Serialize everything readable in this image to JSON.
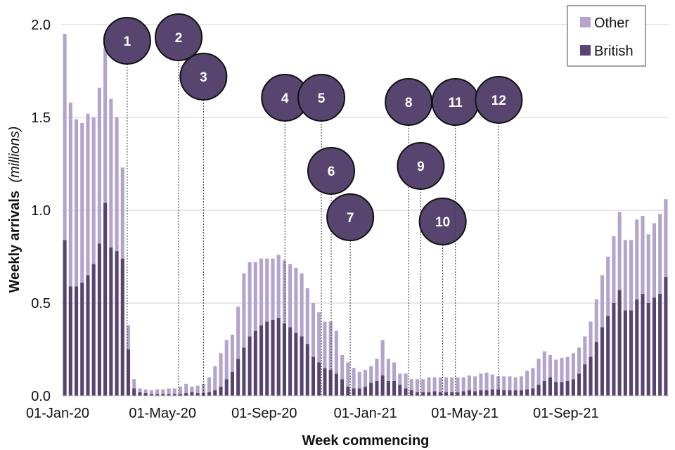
{
  "chart_data": {
    "type": "bar",
    "stacked": true,
    "title": "",
    "xlabel": "Week commencing",
    "ylabel": "Weekly arrivals",
    "ylabel_unit": "(millions)",
    "ylim": [
      0,
      2.0
    ],
    "yticks": [
      "0.0",
      "0.5",
      "1.0",
      "1.5",
      "2.0"
    ],
    "xtick_labels": [
      {
        "label": "01-Jan-20",
        "index": 0
      },
      {
        "label": "01-May-20",
        "index": 17.3
      },
      {
        "label": "01-Sep-20",
        "index": 34.9
      },
      {
        "label": "01-Jan-21",
        "index": 52.4
      },
      {
        "label": "01-May-21",
        "index": 69.6
      },
      {
        "label": "01-Sep-21",
        "index": 87.1
      }
    ],
    "legend": {
      "position": "top-right",
      "items": [
        {
          "name": "Other",
          "color": "#b3a4cc"
        },
        {
          "name": "British",
          "color": "#574570"
        }
      ]
    },
    "series": [
      {
        "name": "British",
        "color": "#574570",
        "values": [
          0.84,
          0.59,
          0.59,
          0.61,
          0.65,
          0.71,
          0.82,
          1.04,
          0.8,
          0.78,
          0.74,
          0.25,
          0.04,
          0.02,
          0.015,
          0.01,
          0.01,
          0.01,
          0.01,
          0.01,
          0.01,
          0.015,
          0.02,
          0.015,
          0.015,
          0.02,
          0.03,
          0.05,
          0.09,
          0.13,
          0.2,
          0.26,
          0.32,
          0.35,
          0.38,
          0.4,
          0.41,
          0.42,
          0.39,
          0.37,
          0.34,
          0.32,
          0.28,
          0.21,
          0.18,
          0.15,
          0.14,
          0.12,
          0.09,
          0.05,
          0.04,
          0.04,
          0.05,
          0.07,
          0.08,
          0.11,
          0.08,
          0.08,
          0.06,
          0.04,
          0.03,
          0.02,
          0.02,
          0.02,
          0.025,
          0.02,
          0.02,
          0.02,
          0.02,
          0.025,
          0.03,
          0.025,
          0.03,
          0.03,
          0.035,
          0.035,
          0.03,
          0.03,
          0.03,
          0.03,
          0.035,
          0.04,
          0.06,
          0.08,
          0.1,
          0.075,
          0.075,
          0.08,
          0.09,
          0.12,
          0.17,
          0.21,
          0.29,
          0.37,
          0.43,
          0.5,
          0.57,
          0.46,
          0.46,
          0.52,
          0.55,
          0.5,
          0.53,
          0.55,
          0.64
        ]
      },
      {
        "name": "Other",
        "color": "#b3a4cc",
        "values": [
          1.11,
          0.99,
          0.9,
          0.86,
          0.87,
          0.79,
          0.84,
          0.83,
          0.8,
          0.72,
          0.49,
          0.13,
          0.05,
          0.02,
          0.02,
          0.02,
          0.025,
          0.025,
          0.03,
          0.03,
          0.04,
          0.05,
          0.03,
          0.04,
          0.05,
          0.08,
          0.13,
          0.18,
          0.21,
          0.2,
          0.28,
          0.4,
          0.4,
          0.37,
          0.36,
          0.34,
          0.33,
          0.34,
          0.34,
          0.34,
          0.35,
          0.34,
          0.3,
          0.29,
          0.27,
          0.25,
          0.26,
          0.23,
          0.13,
          0.13,
          0.11,
          0.09,
          0.09,
          0.09,
          0.12,
          0.19,
          0.12,
          0.1,
          0.06,
          0.08,
          0.06,
          0.07,
          0.07,
          0.08,
          0.075,
          0.08,
          0.08,
          0.08,
          0.08,
          0.075,
          0.08,
          0.08,
          0.09,
          0.095,
          0.08,
          0.07,
          0.075,
          0.075,
          0.07,
          0.075,
          0.1,
          0.11,
          0.14,
          0.16,
          0.12,
          0.12,
          0.13,
          0.13,
          0.14,
          0.14,
          0.15,
          0.19,
          0.23,
          0.28,
          0.32,
          0.36,
          0.42,
          0.38,
          0.38,
          0.43,
          0.42,
          0.37,
          0.4,
          0.43,
          0.42
        ]
      }
    ],
    "annotations": [
      {
        "label": "1",
        "index": 10.8
      },
      {
        "label": "2",
        "index": 19.7
      },
      {
        "label": "3",
        "index": 24.0
      },
      {
        "label": "4",
        "index": 38.1
      },
      {
        "label": "5",
        "index": 44.4
      },
      {
        "label": "6",
        "index": 46.1
      },
      {
        "label": "7",
        "index": 49.4
      },
      {
        "label": "8",
        "index": 59.5
      },
      {
        "label": "9",
        "index": 61.6
      },
      {
        "label": "10",
        "index": 65.4
      },
      {
        "label": "11",
        "index": 67.6
      },
      {
        "label": "12",
        "index": 75.1
      }
    ]
  }
}
